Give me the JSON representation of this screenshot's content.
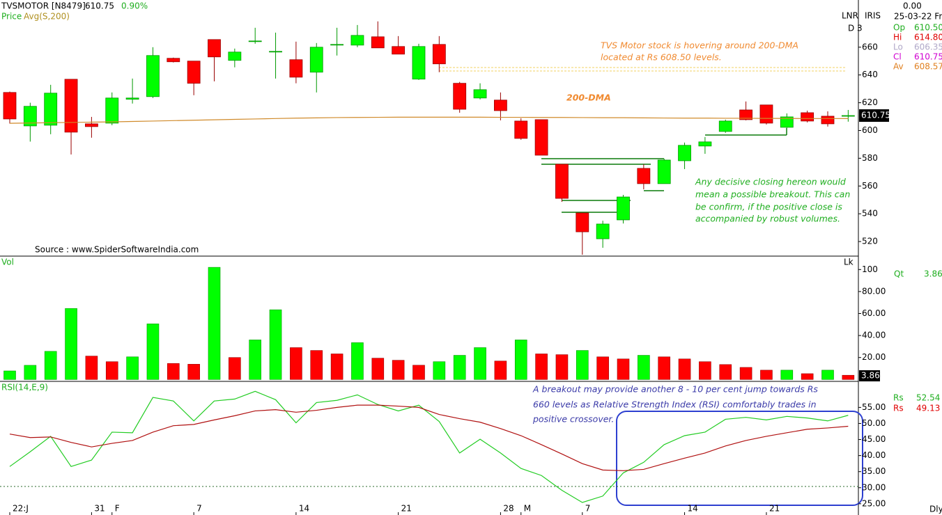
{
  "header": {
    "symbol": "TVSMOTOR [N8479]",
    "price": "610.75",
    "change": "0.90%",
    "price_label": "Price",
    "source": "Source : www.SpiderSoftwareIndia.com"
  },
  "info": {
    "top": "0.00",
    "lnr": "LNR",
    "iris": "IRIS",
    "d": "D 3",
    "date": "25-03-22 Fri",
    "rows": [
      [
        "Op",
        "610.50"
      ],
      [
        "Hi",
        "614.80"
      ],
      [
        "Lo",
        "606.35"
      ],
      [
        "Cl",
        "610.75"
      ],
      [
        "Av",
        "608.57"
      ]
    ],
    "vol": "Vol",
    "lk": "Lk",
    "qt": "Qt",
    "rs": "Rs",
    "period": "Dly"
  },
  "chart_data": [
    {
      "type": "candlestick",
      "annotations": [
        "TVS Motor stock is hovering around 200-DMA",
        "located at Rs 608.50 levels.",
        "200-DMA",
        "Any decisive closing hereon would",
        "mean a possible breakout. This can",
        "be confirm, if the positive close is",
        "accompanied by robust volumes."
      ],
      "open": [
        627.4,
        603.3,
        603.8,
        636.9,
        604.8,
        605.3,
        622.5,
        624.4,
        652,
        650,
        665.5,
        650.5,
        664,
        656.8,
        651,
        642,
        661.5,
        661.5,
        667.5,
        660.5,
        637,
        662,
        634,
        623.4,
        621.9,
        606.8,
        607.8,
        575.7,
        540.6,
        522,
        535.6,
        572.7,
        561.7,
        578.2,
        588.8,
        599.3,
        614.8,
        618.4,
        602.3,
        612.8,
        610.3,
        610.5
      ],
      "high": [
        628,
        620,
        632.9,
        637,
        609.8,
        627.4,
        637.4,
        660,
        652.5,
        650,
        665.5,
        659,
        674,
        670.5,
        664,
        663,
        674,
        676,
        678.6,
        668,
        662.5,
        668,
        635,
        634,
        627.4,
        608.8,
        607.8,
        575.7,
        540.6,
        535,
        553.6,
        575.7,
        579.7,
        591.3,
        595.3,
        607.8,
        620.9,
        618.4,
        612.3,
        614.3,
        613.8,
        614.8
      ],
      "low": [
        605,
        592,
        597.3,
        582.7,
        594.8,
        603.8,
        619.4,
        623.4,
        649,
        625.4,
        635.4,
        645.5,
        662.5,
        637.4,
        634,
        627.4,
        654,
        660,
        659.5,
        655,
        636.4,
        642,
        612.8,
        622.4,
        607.3,
        593.3,
        582.2,
        548.6,
        510.5,
        515.5,
        533,
        557.6,
        561.7,
        572.2,
        583.2,
        598.3,
        607.3,
        604.3,
        601.8,
        605.8,
        602.8,
        606.35
      ],
      "close": [
        608.3,
        617.4,
        626.9,
        598.8,
        602.8,
        623.4,
        623.4,
        654,
        649.5,
        634,
        653,
        656.5,
        664.5,
        657,
        638.4,
        660,
        662,
        668.5,
        659.5,
        655,
        660.5,
        648,
        615.3,
        629.4,
        614.3,
        594.3,
        582.2,
        551.1,
        527,
        532.6,
        552.1,
        561.7,
        578.7,
        589.3,
        591.8,
        606.8,
        607.8,
        605.3,
        609.8,
        606.8,
        604.8,
        610.75
      ],
      "up_color": "#00ff00",
      "down_color": "#ff0000",
      "series": [
        {
          "name": "Avg(S,200)",
          "color": "#d08a2a",
          "values": [
            605.2,
            605.4,
            605.6,
            605.8,
            606.0,
            606.2,
            606.5,
            606.8,
            607.1,
            607.4,
            607.7,
            608.0,
            608.3,
            608.6,
            608.9,
            609.1,
            609.3,
            609.4,
            609.5,
            609.6,
            609.6,
            609.6,
            609.6,
            609.6,
            609.5,
            609.5,
            609.4,
            609.4,
            609.3,
            609.2,
            609.2,
            609.1,
            609.0,
            608.9,
            608.9,
            608.8,
            608.8,
            608.7,
            608.7,
            608.6,
            608.6,
            608.57
          ]
        }
      ],
      "ylim": [
        509.5,
        694
      ],
      "yticks": [
        520,
        540,
        560,
        580,
        600,
        620,
        640,
        660
      ]
    },
    {
      "type": "bar",
      "values": [
        7.8,
        12.9,
        25.6,
        64.6,
        21.3,
        16.2,
        20.6,
        50.6,
        14.6,
        13.9,
        102,
        20,
        36,
        63.4,
        29,
        26.4,
        23.3,
        33.5,
        19.4,
        17.5,
        13,
        16.2,
        22,
        29,
        16.8,
        36,
        23.3,
        22.6,
        26.4,
        20.6,
        18.7,
        22,
        20.6,
        18.7,
        16.2,
        13.6,
        11,
        8.5,
        8.5,
        5.3,
        8.5,
        3.86
      ],
      "colors": [
        "#00ff00",
        "#00ff00",
        "#00ff00",
        "#00ff00",
        "#ff0000",
        "#ff0000",
        "#00ff00",
        "#00ff00",
        "#ff0000",
        "#ff0000",
        "#00ff00",
        "#ff0000",
        "#00ff00",
        "#00ff00",
        "#ff0000",
        "#ff0000",
        "#ff0000",
        "#00ff00",
        "#ff0000",
        "#ff0000",
        "#ff0000",
        "#00ff00",
        "#00ff00",
        "#00ff00",
        "#ff0000",
        "#00ff00",
        "#ff0000",
        "#ff0000",
        "#00ff00",
        "#ff0000",
        "#ff0000",
        "#00ff00",
        "#ff0000",
        "#ff0000",
        "#ff0000",
        "#ff0000",
        "#ff0000",
        "#ff0000",
        "#00ff00",
        "#ff0000",
        "#00ff00",
        "#ff0000"
      ],
      "ylim": [
        -1.7,
        112.2
      ],
      "yticks": [
        {
          "value": 20,
          "label": "20.00"
        },
        {
          "value": 40,
          "label": "40.00"
        },
        {
          "value": 60,
          "label": "60.00"
        },
        {
          "value": 80,
          "label": "80.00"
        },
        100
      ]
    },
    {
      "type": "line",
      "title": "RSI(14,E,9)",
      "annotations": [
        "A breakout may provide another 8 - 10 per cent jump towards Rs",
        "660 levels as Relative Strength Index (RSI) comfortably trades in",
        "positive crossover."
      ],
      "series": [
        {
          "color": "#22cc22",
          "values": [
            36.6,
            41.2,
            46.0,
            36.6,
            38.6,
            47.3,
            47.1,
            58.1,
            57.0,
            50.8,
            57.0,
            57.6,
            60.0,
            57.4,
            50.2,
            56.5,
            57.2,
            58.9,
            55.9,
            53.9,
            55.7,
            50.6,
            40.8,
            45.1,
            40.8,
            36.0,
            33.8,
            29.2,
            25.4,
            27.4,
            34.6,
            37.9,
            43.4,
            46.2,
            47.3,
            51.3,
            51.9,
            51.1,
            52.2,
            51.7,
            50.8,
            52.54
          ]
        },
        {
          "color": "#b01010",
          "values": [
            46.7,
            45.6,
            45.8,
            44.1,
            42.7,
            43.8,
            44.7,
            47.3,
            49.3,
            49.7,
            51.1,
            52.4,
            53.9,
            54.3,
            53.5,
            54.1,
            55.0,
            55.7,
            55.7,
            55.4,
            55.0,
            52.8,
            51.5,
            50.4,
            48.4,
            46.2,
            43.4,
            40.5,
            37.5,
            35.5,
            35.3,
            35.7,
            37.5,
            39.2,
            40.8,
            43.0,
            44.7,
            46.0,
            47.1,
            48.2,
            48.6,
            49.13
          ]
        }
      ],
      "ylim": [
        21.5,
        63.1
      ],
      "yticks": [
        {
          "value": 25,
          "label": "25.00"
        },
        {
          "value": 30,
          "label": "30.00"
        },
        {
          "value": 35,
          "label": "35.00"
        },
        {
          "value": 40,
          "label": "40.00"
        },
        {
          "value": 45,
          "label": "45.00"
        },
        {
          "value": 50,
          "label": "50.00"
        },
        {
          "value": 55,
          "label": "55.00"
        }
      ],
      "xticks": [
        {
          "value": 0,
          "label": "22:J"
        },
        {
          "value": 4,
          "label": "31"
        },
        {
          "value": 5,
          "label": "F"
        },
        {
          "value": 9,
          "label": "7"
        },
        {
          "value": 14,
          "label": "14"
        },
        {
          "value": 19,
          "label": "21"
        },
        {
          "value": 24,
          "label": "28"
        },
        {
          "value": 25,
          "label": "M"
        },
        {
          "value": 28,
          "label": "7"
        },
        {
          "value": 33,
          "label": "14"
        },
        {
          "value": 37,
          "label": "21"
        }
      ]
    }
  ]
}
